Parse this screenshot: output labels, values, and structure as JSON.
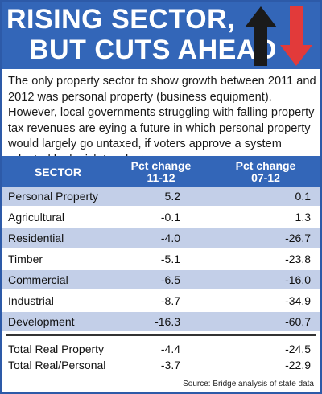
{
  "header": {
    "title_line1": "RISING SECTOR,",
    "title_line2": "BUT CUTS AHEAD",
    "icons": [
      "up-arrow-icon",
      "down-arrow-icon"
    ]
  },
  "intro": "The only property sector to show growth between 2011 and 2012 was personal property (business equipment). However, local governments struggling with falling property tax revenues are eying a future in which personal property would largely go untaxed, if voters approve a system adopted by legislators last year.",
  "source": "Source: Bridge analysis of state data",
  "colors": {
    "header_blue": "#3366b8",
    "row_shade": "#c3cfe8",
    "arrow_up": "#1a1a1a",
    "arrow_down": "#e23a3a"
  },
  "chart_data": {
    "type": "table",
    "columns": [
      "SECTOR",
      "Pct change 11-12",
      "Pct change 07-12"
    ],
    "columns_display": {
      "sector": "SECTOR",
      "c1_line1": "Pct change",
      "c1_line2": "11-12",
      "c2_line1": "Pct change",
      "c2_line2": "07-12"
    },
    "rows": [
      {
        "sector": "Personal Property",
        "pct_11_12": "5.2",
        "pct_07_12": "0.1"
      },
      {
        "sector": "Agricultural",
        "pct_11_12": "-0.1",
        "pct_07_12": "1.3"
      },
      {
        "sector": "Residential",
        "pct_11_12": "-4.0",
        "pct_07_12": "-26.7"
      },
      {
        "sector": "Timber",
        "pct_11_12": "-5.1",
        "pct_07_12": "-23.8"
      },
      {
        "sector": "Commercial",
        "pct_11_12": "-6.5",
        "pct_07_12": "-16.0"
      },
      {
        "sector": "Industrial",
        "pct_11_12": "-8.7",
        "pct_07_12": "-34.9"
      },
      {
        "sector": "Development",
        "pct_11_12": "-16.3",
        "pct_07_12": "-60.7"
      }
    ],
    "totals": [
      {
        "sector": "Total Real Property",
        "pct_11_12": "-4.4",
        "pct_07_12": "-24.5"
      },
      {
        "sector": "Total Real/Personal",
        "pct_11_12": "-3.7",
        "pct_07_12": "-22.9"
      }
    ]
  }
}
